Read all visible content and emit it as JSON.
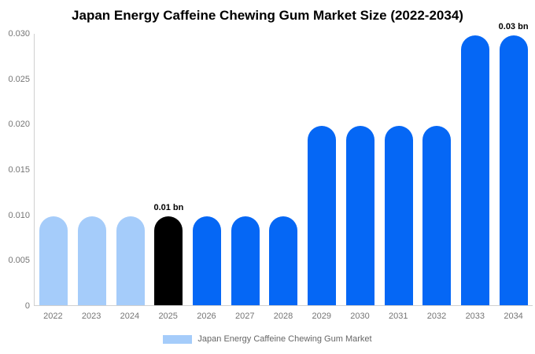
{
  "title": "Japan Energy Caffeine Chewing Gum Market Size (2022-2034)",
  "legend": {
    "label": "Japan Energy Caffeine Chewing Gum Market",
    "swatch_color": "#A5CCFA"
  },
  "colors": {
    "historical_bar": "#A5CCFA",
    "highlight_bar": "#000000",
    "forecast_bar": "#0567F5",
    "axis_line": "#D0D0D0",
    "tick_text": "#757575",
    "annotation_text": "#000000",
    "background": "#FFFFFF"
  },
  "chart_data": {
    "type": "bar",
    "title": "Japan Energy Caffeine Chewing Gum Market Size (2022-2034)",
    "unit": "bn",
    "categories": [
      "2022",
      "2023",
      "2024",
      "2025",
      "2026",
      "2027",
      "2028",
      "2029",
      "2030",
      "2031",
      "2032",
      "2033",
      "2034"
    ],
    "values": [
      0.0098,
      0.0098,
      0.0098,
      0.0098,
      0.0098,
      0.0098,
      0.0098,
      0.0198,
      0.0198,
      0.0198,
      0.0198,
      0.0298,
      0.0298
    ],
    "bar_colors": [
      "#A5CCFA",
      "#A5CCFA",
      "#A5CCFA",
      "#000000",
      "#0567F5",
      "#0567F5",
      "#0567F5",
      "#0567F5",
      "#0567F5",
      "#0567F5",
      "#0567F5",
      "#0567F5",
      "#0567F5"
    ],
    "annotations": [
      {
        "category": "2025",
        "text": "0.01 bn"
      },
      {
        "category": "2034",
        "text": "0.03 bn"
      }
    ],
    "xlabel": "",
    "ylabel": "",
    "ylim": [
      0,
      0.03
    ],
    "y_ticks": [
      0,
      0.005,
      0.01,
      0.015,
      0.02,
      0.025,
      0.03
    ],
    "y_tick_labels": [
      "0",
      "0.005",
      "0.010",
      "0.015",
      "0.020",
      "0.025",
      "0.030"
    ],
    "grid": false,
    "legend_position": "bottom",
    "legend_entries": [
      "Japan Energy Caffeine Chewing Gum Market"
    ]
  }
}
